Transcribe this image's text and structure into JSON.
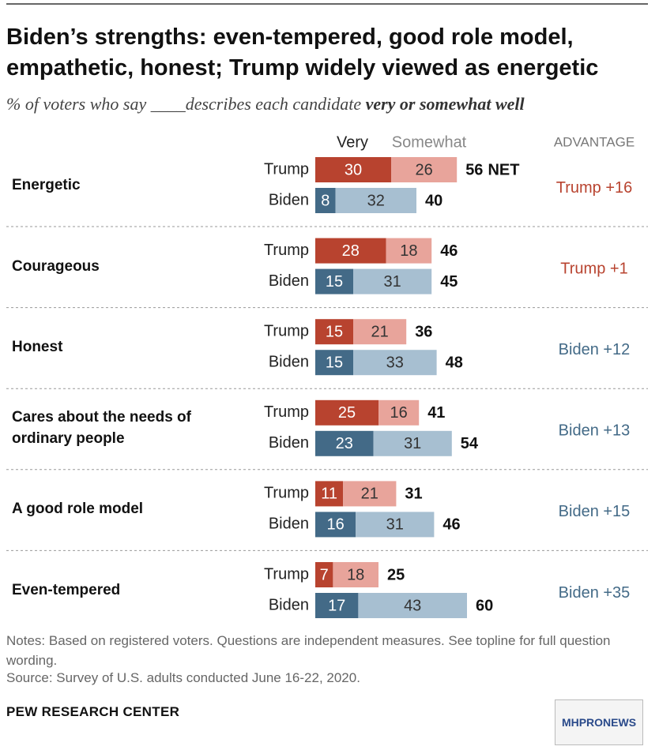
{
  "chart_data": {
    "type": "stacked-bar",
    "title": "Biden’s strengths: even-tempered, good role model, empathetic, honest; Trump widely viewed as energetic",
    "subtitle": "% of voters who say ____describes each candidate",
    "subtitle_emphasis": "very or somewhat well",
    "legend": [
      "Very",
      "Somewhat"
    ],
    "advantage_header": "ADVANTAGE",
    "categories": [
      "Energetic",
      "Courageous",
      "Honest",
      "Cares about the needs of ordinary people",
      "A good role model",
      "Even-tempered"
    ],
    "candidates": [
      {
        "name": "Trump",
        "colors": [
          "#b8432f",
          "#e8a49b"
        ],
        "very": [
          30,
          28,
          15,
          25,
          11,
          7
        ],
        "somewhat": [
          26,
          18,
          21,
          16,
          21,
          18
        ],
        "net": [
          56,
          46,
          36,
          41,
          31,
          25
        ]
      },
      {
        "name": "Biden",
        "colors": [
          "#436a87",
          "#a7bfd1"
        ],
        "very": [
          8,
          15,
          15,
          23,
          16,
          17
        ],
        "somewhat": [
          32,
          31,
          33,
          31,
          31,
          43
        ],
        "net": [
          40,
          45,
          48,
          54,
          46,
          60
        ]
      }
    ],
    "net_suffix": "NET",
    "advantage_labels": [
      "Trump +16",
      "Trump +1",
      "Biden +12",
      "Biden +13",
      "Biden +15",
      "Biden +35"
    ],
    "advantage_colors": [
      "#b8432f",
      "#b8432f",
      "#436a87",
      "#436a87",
      "#436a87",
      "#436a87"
    ],
    "notes": "Notes: Based on registered voters. Questions are independent measures. See topline for full question wording.",
    "source": "Source: Survey of U.S. adults conducted June 16-22, 2020.",
    "organization": "PEW RESEARCH CENTER",
    "watermark": "MHPRONEWS"
  }
}
